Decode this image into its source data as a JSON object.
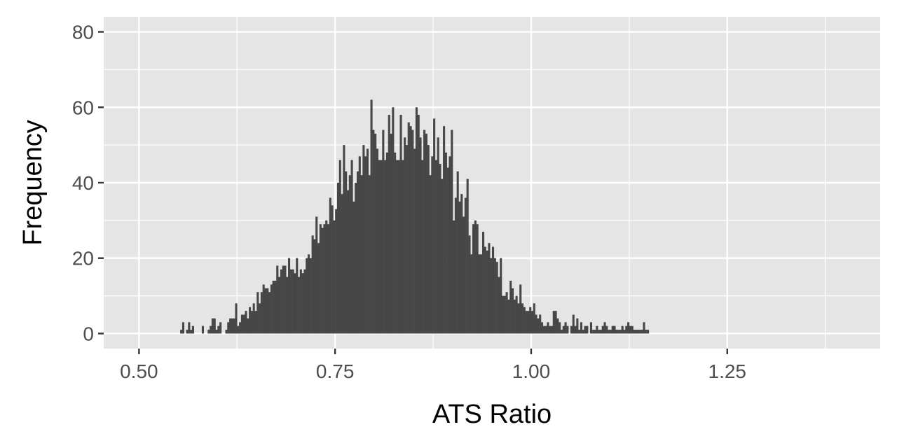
{
  "chart_data": {
    "type": "bar",
    "subtype": "histogram",
    "xlabel": "ATS Ratio",
    "ylabel": "Frequency",
    "xlim": [
      0.455,
      1.445
    ],
    "ylim": [
      -4,
      84
    ],
    "x_ticks": [
      0.5,
      0.75,
      1.0,
      1.25
    ],
    "x_tick_labels": [
      "0.50",
      "0.75",
      "1.00",
      "1.25"
    ],
    "y_ticks": [
      0,
      20,
      40,
      60,
      80
    ],
    "y_tick_labels": [
      "0",
      "20",
      "40",
      "60",
      "80"
    ],
    "grid": true,
    "theme": "ggplot2 grey",
    "bin_start": 0.5525,
    "bin_width": 0.0025,
    "values": [
      1,
      3,
      0,
      1,
      3,
      1,
      2,
      0,
      0,
      0,
      0,
      2,
      0,
      0,
      1,
      2,
      4,
      4,
      1,
      2,
      3,
      0,
      0,
      1,
      3,
      4,
      4,
      4,
      8,
      2,
      3,
      5,
      5,
      6,
      4,
      7,
      6,
      8,
      6,
      11,
      8,
      11,
      13,
      12,
      12,
      11,
      13,
      14,
      14,
      18,
      15,
      17,
      18,
      18,
      15,
      20,
      17,
      17,
      16,
      20,
      15,
      17,
      16,
      17,
      20,
      21,
      20,
      26,
      25,
      31,
      24,
      29,
      28,
      29,
      30,
      29,
      36,
      34,
      30,
      33,
      40,
      46,
      37,
      50,
      43,
      38,
      42,
      46,
      35,
      40,
      43,
      47,
      42,
      50,
      47,
      49,
      42,
      62,
      54,
      53,
      49,
      46,
      46,
      54,
      46,
      48,
      58,
      53,
      60,
      48,
      46,
      46,
      58,
      46,
      52,
      50,
      56,
      55,
      54,
      49,
      60,
      58,
      52,
      46,
      54,
      53,
      50,
      42,
      47,
      57,
      46,
      52,
      45,
      41,
      55,
      48,
      44,
      47,
      54,
      30,
      36,
      43,
      35,
      37,
      31,
      36,
      41,
      26,
      21,
      29,
      30,
      29,
      21,
      21,
      27,
      23,
      22,
      24,
      20,
      23,
      20,
      19,
      15,
      20,
      10,
      10,
      11,
      9,
      14,
      12,
      9,
      10,
      8,
      13,
      8,
      7,
      6,
      6,
      7,
      6,
      8,
      5,
      4,
      5,
      3,
      2,
      2,
      3,
      2,
      2,
      6,
      6,
      4,
      3,
      1,
      2,
      3,
      2,
      0,
      2,
      5,
      2,
      4,
      1,
      3,
      1,
      2,
      2,
      0,
      3,
      1,
      1,
      2,
      1,
      1,
      2,
      3,
      2,
      1,
      1,
      2,
      2,
      1,
      1,
      1,
      2,
      1,
      2,
      3,
      2,
      2,
      1,
      1,
      1,
      1,
      1,
      3,
      1,
      1
    ]
  },
  "colors": {
    "panel_background": "#e5e5e5",
    "gridline": "#ffffff",
    "bar_fill": "#474747",
    "tick_mark": "#333333"
  }
}
